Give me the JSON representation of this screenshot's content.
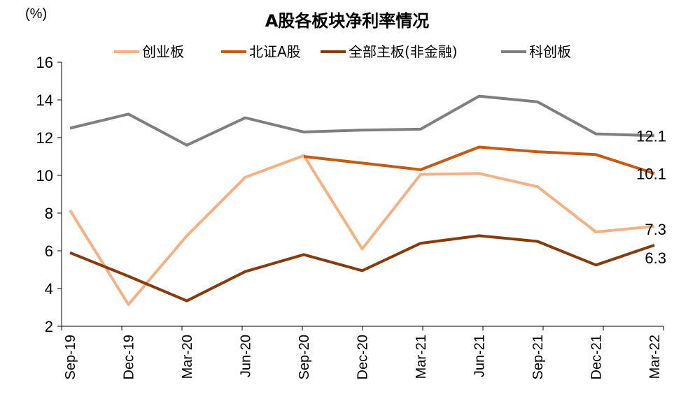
{
  "chart_data": {
    "type": "line",
    "title": "A股各板块净利率情况",
    "unit": "(%)",
    "categories": [
      "Sep-19",
      "Dec-19",
      "Mar-20",
      "Jun-20",
      "Sep-20",
      "Dec-20",
      "Mar-21",
      "Jun-21",
      "Sep-21",
      "Dec-21",
      "Mar-22"
    ],
    "ylim": [
      2,
      16
    ],
    "yticks": [
      "2",
      "4",
      "6",
      "8",
      "10",
      "12",
      "14",
      "16"
    ],
    "legend_position": "top",
    "series": [
      {
        "name": "创业板",
        "color": "#f4b183",
        "values": [
          8.15,
          3.15,
          6.8,
          9.9,
          11.05,
          6.1,
          10.05,
          10.1,
          9.4,
          7.0,
          7.3
        ],
        "end_label": "7.3"
      },
      {
        "name": "北证A股",
        "color": "#c55a11",
        "values": [
          null,
          null,
          null,
          null,
          11.0,
          10.65,
          10.3,
          11.5,
          11.25,
          11.1,
          10.1
        ],
        "end_label": "10.1"
      },
      {
        "name": "全部主板(非金融)",
        "color": "#843c0c",
        "values": [
          5.9,
          4.65,
          3.35,
          4.9,
          5.8,
          4.95,
          6.4,
          6.8,
          6.5,
          5.25,
          6.3
        ],
        "end_label": "6.3"
      },
      {
        "name": "科创板",
        "color": "#7f7f7f",
        "values": [
          12.5,
          13.25,
          11.6,
          13.05,
          12.3,
          12.4,
          12.45,
          14.2,
          13.9,
          12.2,
          12.1
        ],
        "end_label": "12.1"
      }
    ]
  }
}
